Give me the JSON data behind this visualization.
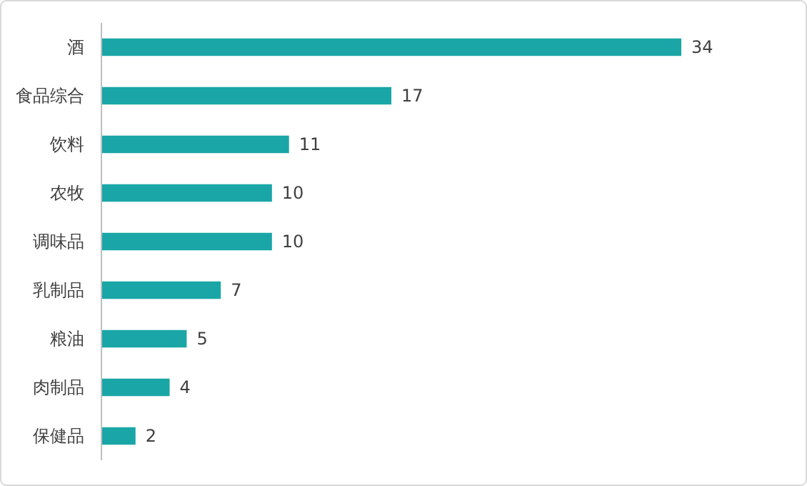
{
  "chart_data": {
    "type": "bar",
    "orientation": "horizontal",
    "categories": [
      "酒",
      "食品综合",
      "饮料",
      "农牧",
      "调味品",
      "乳制品",
      "粮油",
      "肉制品",
      "保健品"
    ],
    "values": [
      34,
      17,
      11,
      10,
      10,
      7,
      5,
      4,
      2
    ],
    "color": "#1aa6a6",
    "data_labels": true
  }
}
